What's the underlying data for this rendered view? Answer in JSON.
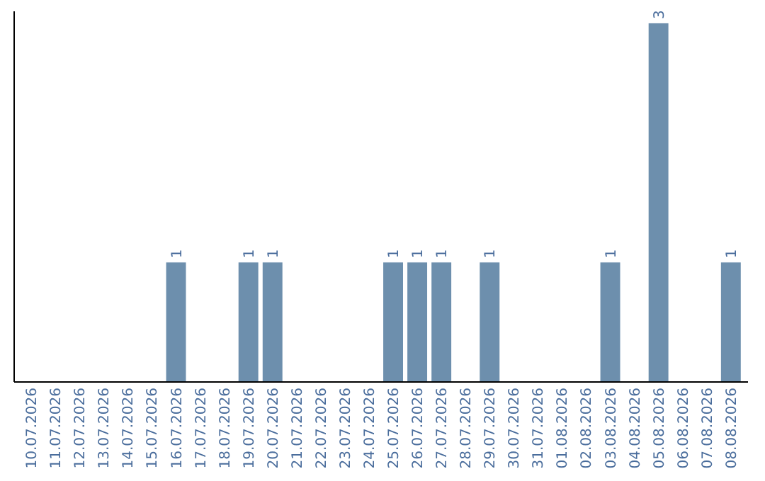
{
  "chart_data": {
    "type": "bar",
    "categories": [
      "10.07.2026",
      "11.07.2026",
      "12.07.2026",
      "13.07.2026",
      "14.07.2026",
      "15.07.2026",
      "16.07.2026",
      "17.07.2026",
      "18.07.2026",
      "19.07.2026",
      "20.07.2026",
      "21.07.2026",
      "22.07.2026",
      "23.07.2026",
      "24.07.2026",
      "25.07.2026",
      "26.07.2026",
      "27.07.2026",
      "28.07.2026",
      "29.07.2026",
      "30.07.2026",
      "31.07.2026",
      "01.08.2026",
      "02.08.2026",
      "03.08.2026",
      "04.08.2026",
      "05.08.2026",
      "06.08.2026",
      "07.08.2026",
      "08.08.2026"
    ],
    "values": [
      0,
      0,
      0,
      0,
      0,
      0,
      1,
      0,
      0,
      1,
      1,
      0,
      0,
      0,
      0,
      1,
      1,
      1,
      0,
      1,
      0,
      0,
      0,
      0,
      1,
      0,
      3,
      0,
      0,
      1
    ],
    "value_labels": [
      null,
      null,
      null,
      null,
      null,
      null,
      "1",
      null,
      null,
      "1",
      "1",
      null,
      null,
      null,
      null,
      "1",
      "1",
      "1",
      null,
      "1",
      null,
      null,
      null,
      null,
      "1",
      null,
      "3",
      null,
      null,
      "1"
    ],
    "color": "#6d8fad",
    "ylim": [
      0,
      3.1
    ],
    "tick_labels": "x"
  }
}
